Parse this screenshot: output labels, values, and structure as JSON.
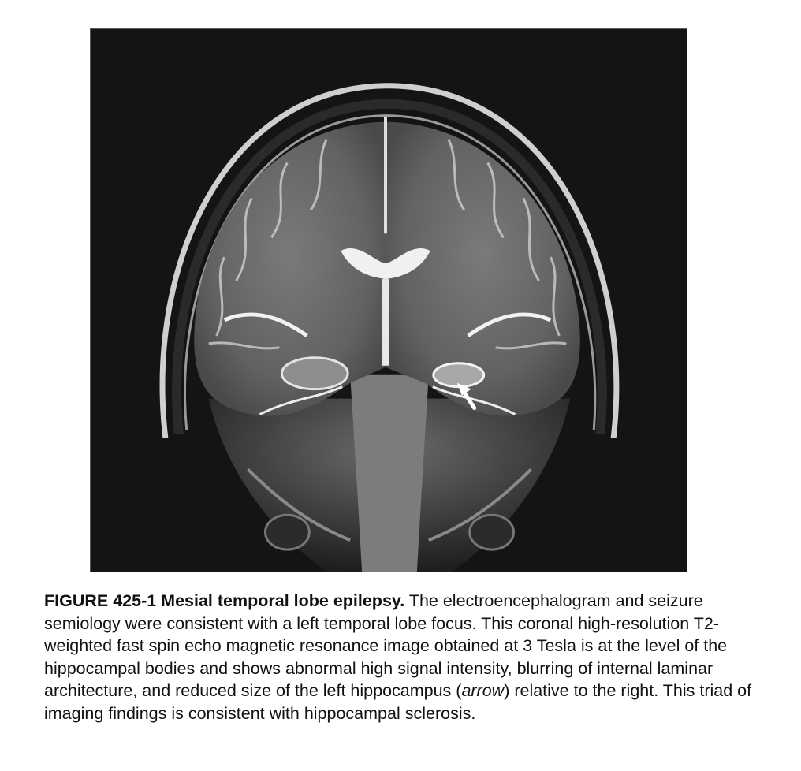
{
  "figure": {
    "image_description_icon": "mri-brain-coronal-image",
    "colors": {
      "background": "#141414",
      "skull": "#d8d8d8",
      "brain": "#6f6f6f",
      "csf": "#e6e6e6",
      "arrow": "#ffffff"
    }
  },
  "caption": {
    "label": "FIGURE 425-1",
    "title": "Mesial temporal lobe epilepsy.",
    "text_before_italic": "The electroencephalogram and seizure semiology were consistent with a left temporal lobe focus. This coronal high-resolution T2-weighted fast spin echo magnetic resonance image obtained at 3 Tesla is at the level of the hippocampal bodies and shows abnormal high signal intensity, blurring of internal laminar architecture, and reduced size of the left hippocampus (",
    "italic": "arrow",
    "text_after_italic": ") relative to the right. This triad of imaging findings is consistent with hippocampal sclerosis."
  }
}
